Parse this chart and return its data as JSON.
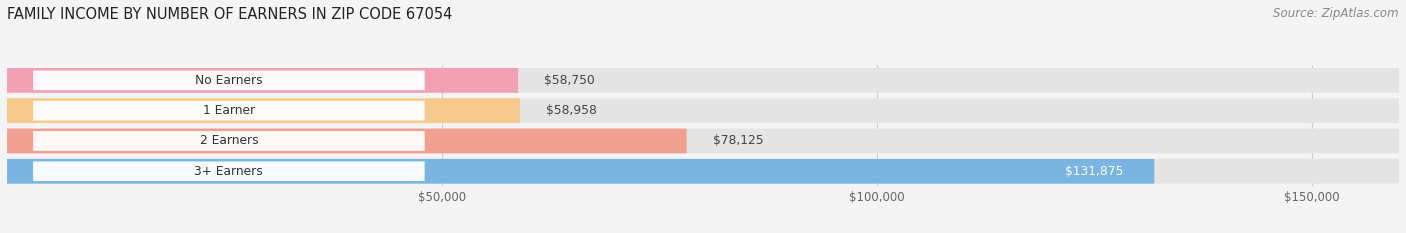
{
  "title": "FAMILY INCOME BY NUMBER OF EARNERS IN ZIP CODE 67054",
  "source": "Source: ZipAtlas.com",
  "categories": [
    "No Earners",
    "1 Earner",
    "2 Earners",
    "3+ Earners"
  ],
  "values": [
    58750,
    58958,
    78125,
    131875
  ],
  "bar_colors": [
    "#f2a0b4",
    "#f5ca8c",
    "#f0a090",
    "#7ab4e0"
  ],
  "value_labels": [
    "$58,750",
    "$58,958",
    "$78,125",
    "$131,875"
  ],
  "xlim_min": 0,
  "xlim_max": 160000,
  "xtick_values": [
    50000,
    100000,
    150000
  ],
  "xtick_labels": [
    "$50,000",
    "$100,000",
    "$150,000"
  ],
  "background_color": "#f4f4f4",
  "bar_background_color": "#e4e4e4",
  "title_fontsize": 10.5,
  "source_fontsize": 8.5,
  "bar_height": 0.6
}
